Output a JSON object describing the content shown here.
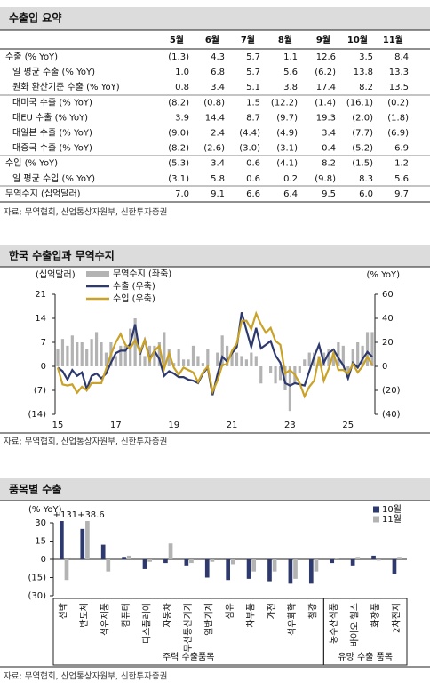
{
  "summary": {
    "title": "수출입 요약",
    "columns": [
      "5월",
      "6월",
      "7월",
      "8월",
      "9월",
      "10월",
      "11월"
    ],
    "rows": [
      {
        "label": "수출 (% YoY)",
        "values": [
          "(1.3)",
          "4.3",
          "5.7",
          "1.1",
          "12.6",
          "3.5",
          "8.4"
        ]
      },
      {
        "label": "일 평균 수출 (% YoY)",
        "values": [
          "1.0",
          "6.8",
          "5.7",
          "5.6",
          "(6.2)",
          "13.8",
          "13.3"
        ]
      },
      {
        "label": "원화 환산기준 수출 (% YoY)",
        "values": [
          "0.8",
          "3.4",
          "5.1",
          "3.8",
          "17.4",
          "8.2",
          "13.5"
        ]
      },
      {
        "label": "대미국 수출 (% YoY)",
        "values": [
          "(8.2)",
          "(0.8)",
          "1.5",
          "(12.2)",
          "(1.4)",
          "(16.1)",
          "(0.2)"
        ]
      },
      {
        "label": "대EU 수출 (% YoY)",
        "values": [
          "3.9",
          "14.4",
          "8.7",
          "(9.7)",
          "19.3",
          "(2.0)",
          "(1.8)"
        ]
      },
      {
        "label": "대일본 수출 (% YoY)",
        "values": [
          "(9.0)",
          "2.4",
          "(4.4)",
          "(4.9)",
          "3.4",
          "(7.7)",
          "(6.9)"
        ]
      },
      {
        "label": "대중국 수출 (% YoY)",
        "values": [
          "(8.2)",
          "(2.6)",
          "(3.0)",
          "(3.1)",
          "0.4",
          "(5.2)",
          "6.9"
        ]
      },
      {
        "label": "수입 (% YoY)",
        "values": [
          "(5.3)",
          "3.4",
          "0.6",
          "(4.1)",
          "8.2",
          "(1.5)",
          "1.2"
        ]
      },
      {
        "label": "일 평균 수입 (% YoY)",
        "values": [
          "(3.1)",
          "5.8",
          "0.6",
          "0.2",
          "(9.8)",
          "8.3",
          "5.6"
        ]
      },
      {
        "label": "무역수지 (십억달러)",
        "values": [
          "7.0",
          "9.1",
          "6.6",
          "6.4",
          "9.5",
          "6.0",
          "9.7"
        ]
      }
    ],
    "source": "자료: 무역협회, 산업통상자원부, 신한투자증권"
  },
  "chart_data": [
    {
      "type": "combo",
      "title": "한국 수출입과 무역수지",
      "ylabel": "(십억달러)",
      "y2label": "(% YoY)",
      "source": "자료: 무역협회, 산업통상자원부, 신한투자증권",
      "categories": [
        "15",
        null,
        null,
        null,
        null,
        null,
        null,
        null,
        null,
        null,
        null,
        null,
        "17",
        null,
        null,
        null,
        null,
        null,
        null,
        null,
        null,
        null,
        null,
        null,
        "19",
        null,
        null,
        null,
        null,
        null,
        null,
        null,
        null,
        null,
        null,
        null,
        "21",
        null,
        null,
        null,
        null,
        null,
        null,
        null,
        null,
        null,
        null,
        null,
        "23",
        null,
        null,
        null,
        null,
        null,
        null,
        null,
        null,
        null,
        null,
        null,
        "25",
        null,
        null,
        null,
        null,
        null
      ],
      "ylim": [
        -14,
        21
      ],
      "yticks": [
        {
          "value": -14,
          "label": "(14)"
        },
        {
          "value": -7,
          "label": "(7)"
        },
        0,
        7,
        14,
        21
      ],
      "y2lim": [
        -40,
        60
      ],
      "y2ticks": [
        {
          "value": -40,
          "label": "(40)"
        },
        {
          "value": -20,
          "label": "(20)"
        },
        0,
        20,
        40,
        60
      ],
      "series": [
        {
          "name": "무역수지 (좌축)",
          "color": "#b3b3b3",
          "values": [
            5,
            8,
            6,
            9,
            7,
            7,
            5,
            8,
            10,
            7,
            4,
            7,
            3,
            6,
            6,
            11,
            14,
            4,
            3,
            6,
            6,
            7,
            10,
            5,
            1,
            5,
            2,
            2,
            6,
            3,
            1,
            5,
            0,
            4,
            9,
            6,
            4,
            4,
            3,
            2,
            4,
            3,
            -5,
            0,
            -2,
            -5,
            -4,
            -7,
            -13,
            -5,
            -2,
            2,
            4,
            4,
            3,
            4,
            5,
            4,
            7,
            6,
            -2,
            5,
            7,
            6,
            10,
            10
          ]
        },
        {
          "name": "수출 (우축)",
          "color": "#2e3a6e",
          "axis": "y2",
          "values": [
            -1,
            -4,
            -11,
            -3,
            -8,
            -5,
            -19,
            -8,
            -6,
            -10,
            -6,
            3,
            11,
            13,
            13,
            19,
            35,
            10,
            22,
            6,
            13,
            6,
            -8,
            -4,
            -6,
            -9,
            -9,
            -11,
            -12,
            -14,
            -6,
            -1,
            -24,
            -7,
            8,
            4,
            11,
            16,
            45,
            30,
            16,
            32,
            15,
            18,
            21,
            9,
            3,
            -14,
            -16,
            -14,
            -15,
            -16,
            -4,
            8,
            18,
            3,
            11,
            14,
            7,
            1,
            -10,
            3,
            -1,
            6,
            12,
            8
          ]
        },
        {
          "name": "수입 (우축)",
          "color": "#c9a227",
          "axis": "y2",
          "values": [
            -1,
            -15,
            -16,
            -15,
            -22,
            -17,
            -20,
            -14,
            -14,
            -14,
            -2,
            10,
            20,
            27,
            18,
            15,
            22,
            12,
            22,
            5,
            13,
            17,
            -2,
            11,
            -1,
            -7,
            -1,
            -3,
            -5,
            -13,
            -5,
            0,
            -21,
            -12,
            1,
            2,
            13,
            19,
            38,
            38,
            31,
            44,
            35,
            28,
            32,
            21,
            18,
            -6,
            -3,
            -7,
            -14,
            -25,
            -17,
            -12,
            8,
            -12,
            -2,
            11,
            -3,
            -3,
            -6,
            2,
            -5,
            0,
            8,
            1
          ]
        }
      ]
    },
    {
      "type": "bar",
      "title": "품목별 수출",
      "ylabel": "(% YoY)",
      "source": "자료: 무역협회, 산업통상자원부, 신한투자증권",
      "categories": [
        "선박",
        "반도체",
        "석유제품",
        "컴퓨터",
        "디스플레이",
        "자동차",
        "무선통신기기",
        "일반기계",
        "섬유",
        "차부품",
        "가전",
        "석유화학",
        "철강",
        "농수산식품",
        "바이오 헬스",
        "화장품",
        "2차전지"
      ],
      "groups": [
        {
          "label": "주력 수출품목",
          "size": 13
        },
        {
          "label": "유망 수출 품목",
          "size": 4
        }
      ],
      "ylim": [
        -30,
        30
      ],
      "yticks": [
        {
          "value": -30,
          "label": "(30)"
        },
        {
          "value": -15,
          "label": "(15)"
        },
        0,
        15,
        30
      ],
      "series": [
        {
          "name": "10월",
          "color": "#2e3a6e",
          "values": [
            131,
            25,
            12,
            2,
            -8,
            -3,
            -5,
            -15,
            -17,
            -16,
            -18,
            -20,
            -20,
            -3,
            -5,
            3,
            -12
          ],
          "value_labels": [
            "+131",
            null,
            null,
            null,
            null,
            null,
            null,
            null,
            null,
            null,
            null,
            null,
            null,
            null,
            null,
            null,
            null
          ]
        },
        {
          "name": "11월",
          "color": "#b3b3b3",
          "values": [
            -17,
            38.6,
            -10,
            3,
            -2,
            13,
            -3,
            -2,
            -4,
            -10,
            -10,
            -16,
            -10,
            1,
            2,
            -1,
            2
          ],
          "value_labels": [
            null,
            "+38.6",
            null,
            null,
            null,
            null,
            null,
            null,
            null,
            null,
            null,
            null,
            null,
            null,
            null,
            null,
            null
          ]
        }
      ]
    }
  ]
}
